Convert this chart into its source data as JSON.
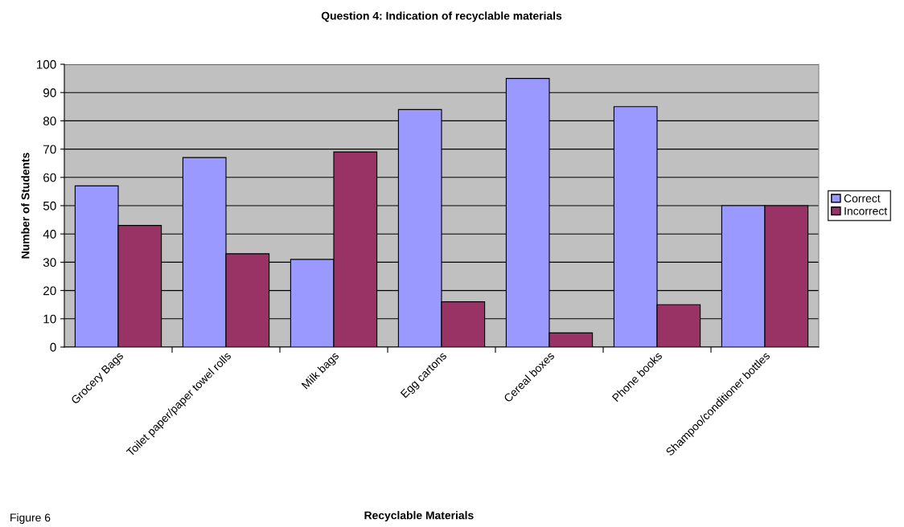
{
  "chart_data": {
    "type": "bar",
    "title": "Question 4: Indication of recyclable materials",
    "xlabel": "Recyclable Materials",
    "ylabel": "Number of Students",
    "categories": [
      "Grocery Bags",
      "Toilet paper/paper towel rolls",
      "Milk bags",
      "Egg cartons",
      "Cereal boxes",
      "Phone books",
      "Shampoo/conditioner bottles"
    ],
    "series": [
      {
        "name": "Correct",
        "color": "#9999ff",
        "values": [
          57,
          67,
          31,
          84,
          95,
          85,
          50
        ]
      },
      {
        "name": "Incorrect",
        "color": "#993366",
        "values": [
          43,
          33,
          69,
          16,
          5,
          15,
          50
        ]
      }
    ],
    "ylim": [
      0,
      100
    ],
    "yticks": [
      0,
      10,
      20,
      30,
      40,
      50,
      60,
      70,
      80,
      90,
      100
    ],
    "grid": "y",
    "legend": "right",
    "annotations": [
      "Figure 6"
    ]
  }
}
